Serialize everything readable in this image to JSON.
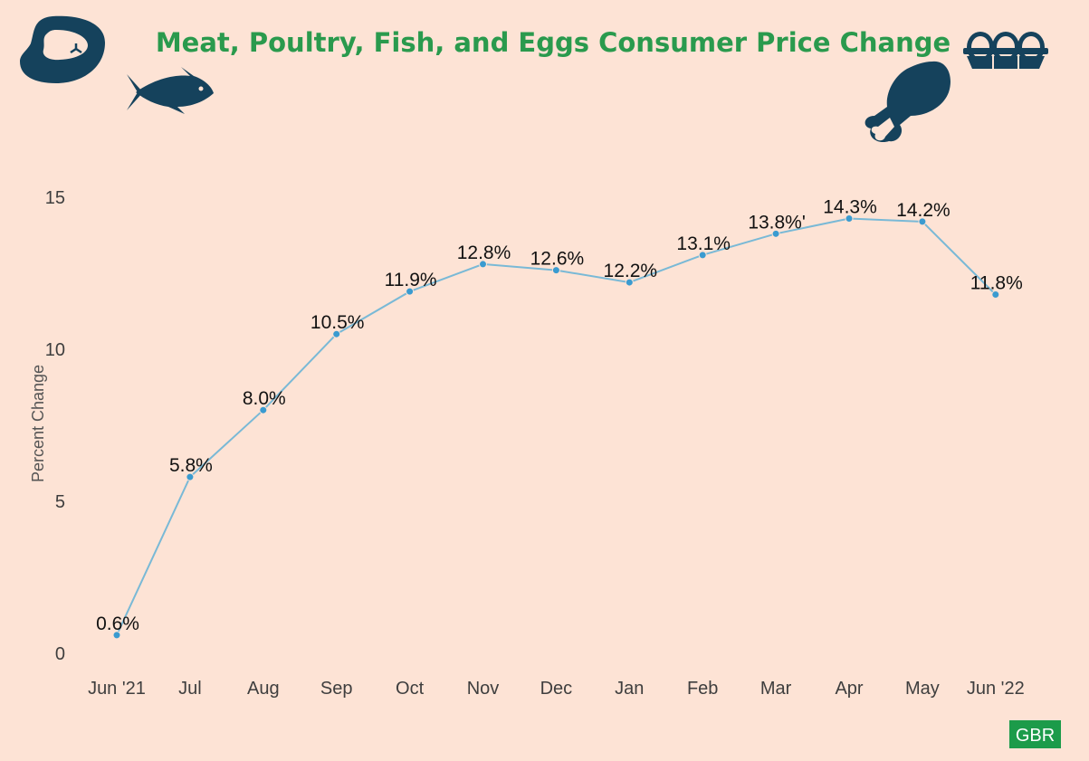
{
  "chart_data": {
    "type": "line",
    "title": "Meat, Poultry, Fish, and Eggs Consumer Price Change",
    "ylabel": "Percent Change",
    "xlabel": "",
    "ylim": [
      0,
      15
    ],
    "yticks": [
      0,
      5,
      10,
      15
    ],
    "grid": false,
    "categories": [
      "Jun '21",
      "Jul",
      "Aug",
      "Sep",
      "Oct",
      "Nov",
      "Dec",
      "Jan",
      "Feb",
      "Mar",
      "Apr",
      "May",
      "Jun '22"
    ],
    "values": [
      0.6,
      5.8,
      8.0,
      10.5,
      11.9,
      12.8,
      12.6,
      12.2,
      13.1,
      13.8,
      14.3,
      14.2,
      11.8
    ],
    "data_labels": [
      "0.6%",
      "5.8%",
      "8.0%",
      "10.5%",
      "11.9%",
      "12.8%",
      "12.6%",
      "12.2%",
      "13.1%",
      "13.8%'",
      "14.3%",
      "14.2%",
      "11.8%"
    ],
    "line_color": "#79b9d6",
    "point_color": "#3a9bd0"
  },
  "icons": [
    "steak-icon",
    "fish-icon",
    "chicken-leg-icon",
    "egg-carton-icon"
  ],
  "colors": {
    "background": "#fde3d5",
    "title": "#2a9a4d",
    "icon": "#15425c",
    "badge": "#1c9b4a"
  },
  "badge": {
    "text": "GBR"
  }
}
